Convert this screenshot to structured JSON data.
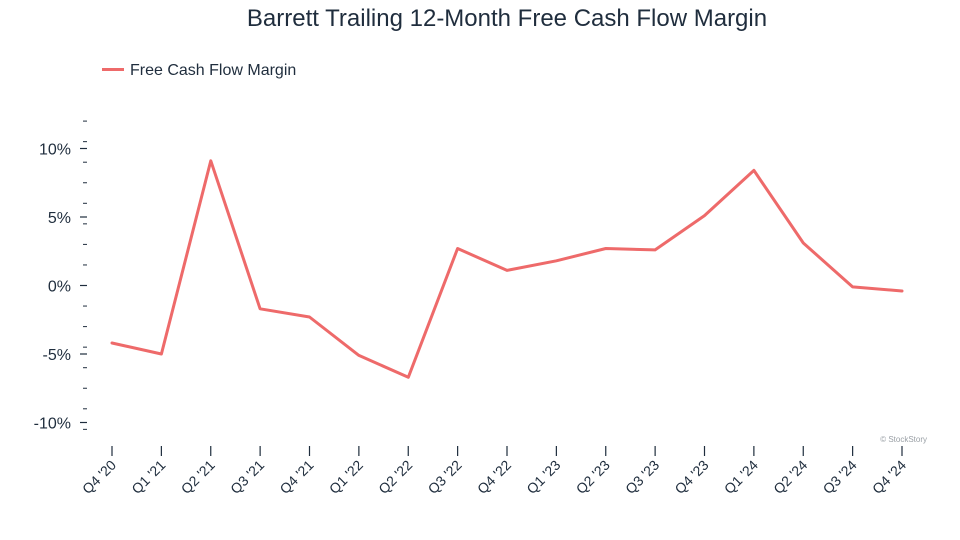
{
  "chart_data": {
    "type": "line",
    "title": "Barrett Trailing 12-Month Free Cash Flow Margin",
    "categories": [
      "Q4 '20",
      "Q1 '21",
      "Q2 '21",
      "Q3 '21",
      "Q4 '21",
      "Q1 '22",
      "Q2 '22",
      "Q3 '22",
      "Q4 '22",
      "Q1 '23",
      "Q2 '23",
      "Q3 '23",
      "Q4 '23",
      "Q1 '24",
      "Q2 '24",
      "Q3 '24",
      "Q4 '24"
    ],
    "series": [
      {
        "name": "Free Cash Flow Margin",
        "color": "#ee6a6a",
        "values": [
          -4.2,
          -5.0,
          9.1,
          -1.7,
          -2.3,
          -5.1,
          -6.7,
          2.7,
          1.1,
          1.8,
          2.7,
          2.6,
          5.1,
          8.4,
          3.1,
          -0.1,
          -0.4
        ]
      }
    ],
    "y_ticks": [
      "10%",
      "5%",
      "0%",
      "-5%",
      "-10%"
    ],
    "y_tick_values": [
      10,
      5,
      0,
      -5,
      -10
    ],
    "ylim": [
      -11.5,
      13
    ],
    "legend_position": "top-left",
    "grid": false,
    "credit": "© StockStory"
  }
}
